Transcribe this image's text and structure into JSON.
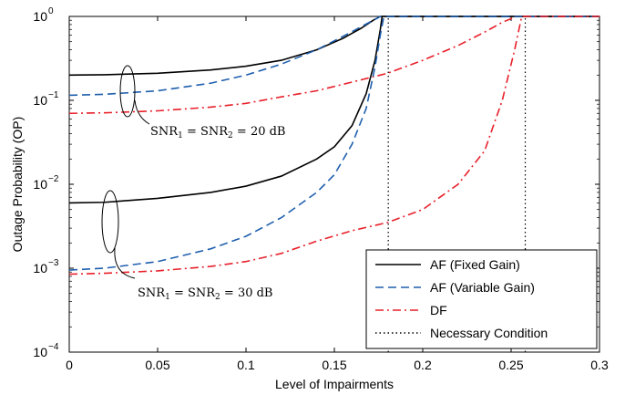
{
  "chart_data": {
    "type": "line",
    "xlabel": "Level of Impairments",
    "ylabel": "Outage Probability (OP)",
    "xlim": [
      0,
      0.3
    ],
    "ylim": [
      0.0001,
      1
    ],
    "yscale": "log",
    "grid": false,
    "legend_position": "bottom-right",
    "x_ticks": [
      0,
      0.05,
      0.1,
      0.15,
      0.2,
      0.25,
      0.3
    ],
    "x_tick_labels": [
      "0",
      "0.05",
      "0.1",
      "0.15",
      "0.2",
      "0.25",
      "0.3"
    ],
    "y_ticks": [
      0.0001,
      0.001,
      0.01,
      0.1,
      1
    ],
    "y_tick_labels": [
      {
        "base": "10",
        "exp": "−4"
      },
      {
        "base": "10",
        "exp": "−3"
      },
      {
        "base": "10",
        "exp": "−2"
      },
      {
        "base": "10",
        "exp": "−1"
      },
      {
        "base": "10",
        "exp": "0"
      }
    ],
    "series": [
      {
        "name": "AF (Fixed Gain)",
        "color": "#000000",
        "dash": "solid",
        "group": "SNR 20 dB",
        "points": [
          [
            0,
            0.2
          ],
          [
            0.02,
            0.202
          ],
          [
            0.05,
            0.21
          ],
          [
            0.08,
            0.23
          ],
          [
            0.1,
            0.255
          ],
          [
            0.12,
            0.3
          ],
          [
            0.14,
            0.4
          ],
          [
            0.155,
            0.55
          ],
          [
            0.165,
            0.72
          ],
          [
            0.172,
            0.9
          ],
          [
            0.176,
            1
          ],
          [
            0.3,
            1
          ]
        ]
      },
      {
        "name": "AF (Variable Gain)",
        "color": "#1f5fad",
        "dash": "dashed",
        "group": "SNR 20 dB",
        "points": [
          [
            0,
            0.115
          ],
          [
            0.02,
            0.118
          ],
          [
            0.05,
            0.13
          ],
          [
            0.08,
            0.16
          ],
          [
            0.1,
            0.2
          ],
          [
            0.12,
            0.27
          ],
          [
            0.14,
            0.4
          ],
          [
            0.155,
            0.58
          ],
          [
            0.165,
            0.75
          ],
          [
            0.172,
            0.9
          ],
          [
            0.176,
            1
          ],
          [
            0.3,
            1
          ]
        ]
      },
      {
        "name": "DF",
        "color": "#e8202a",
        "dash": "dashdot",
        "group": "SNR 20 dB",
        "points": [
          [
            0,
            0.07
          ],
          [
            0.02,
            0.071
          ],
          [
            0.05,
            0.075
          ],
          [
            0.08,
            0.083
          ],
          [
            0.1,
            0.092
          ],
          [
            0.12,
            0.11
          ],
          [
            0.14,
            0.13
          ],
          [
            0.16,
            0.165
          ],
          [
            0.18,
            0.21
          ],
          [
            0.2,
            0.3
          ],
          [
            0.22,
            0.45
          ],
          [
            0.235,
            0.65
          ],
          [
            0.245,
            0.85
          ],
          [
            0.253,
            1
          ],
          [
            0.3,
            1
          ]
        ]
      },
      {
        "name": "AF (Fixed Gain)",
        "color": "#000000",
        "dash": "solid",
        "group": "SNR 30 dB",
        "points": [
          [
            0,
            0.006
          ],
          [
            0.02,
            0.0061
          ],
          [
            0.05,
            0.0068
          ],
          [
            0.08,
            0.008
          ],
          [
            0.1,
            0.0095
          ],
          [
            0.12,
            0.0125
          ],
          [
            0.14,
            0.02
          ],
          [
            0.15,
            0.028
          ],
          [
            0.16,
            0.05
          ],
          [
            0.168,
            0.12
          ],
          [
            0.173,
            0.3
          ],
          [
            0.176,
            0.7
          ],
          [
            0.177,
            1
          ],
          [
            0.3,
            1
          ]
        ]
      },
      {
        "name": "AF (Variable Gain)",
        "color": "#1f5fad",
        "dash": "dashed",
        "group": "SNR 30 dB",
        "points": [
          [
            0,
            0.00095
          ],
          [
            0.02,
            0.001
          ],
          [
            0.05,
            0.0012
          ],
          [
            0.08,
            0.0017
          ],
          [
            0.1,
            0.0024
          ],
          [
            0.12,
            0.004
          ],
          [
            0.14,
            0.008
          ],
          [
            0.15,
            0.013
          ],
          [
            0.16,
            0.03
          ],
          [
            0.168,
            0.08
          ],
          [
            0.173,
            0.25
          ],
          [
            0.176,
            0.6
          ],
          [
            0.178,
            1
          ],
          [
            0.3,
            1
          ]
        ]
      },
      {
        "name": "DF",
        "color": "#e8202a",
        "dash": "dashdot",
        "group": "SNR 30 dB",
        "points": [
          [
            0,
            0.00085
          ],
          [
            0.02,
            0.00087
          ],
          [
            0.05,
            0.00093
          ],
          [
            0.08,
            0.00105
          ],
          [
            0.1,
            0.0012
          ],
          [
            0.12,
            0.0015
          ],
          [
            0.14,
            0.0021
          ],
          [
            0.16,
            0.0028
          ],
          [
            0.18,
            0.0035
          ],
          [
            0.2,
            0.005
          ],
          [
            0.22,
            0.01
          ],
          [
            0.235,
            0.025
          ],
          [
            0.245,
            0.1
          ],
          [
            0.252,
            0.4
          ],
          [
            0.256,
            1
          ],
          [
            0.3,
            1
          ]
        ]
      },
      {
        "name": "Necessary Condition",
        "color": "#000000",
        "dash": "dotted",
        "group": "limits",
        "points": [
          [
            0.1805,
            0.0001
          ],
          [
            0.1805,
            1
          ]
        ]
      },
      {
        "name": "Necessary Condition",
        "color": "#000000",
        "dash": "dotted",
        "group": "limits",
        "points": [
          [
            0.258,
            0.0001
          ],
          [
            0.258,
            1
          ]
        ]
      }
    ],
    "legend": [
      {
        "label": "AF (Fixed Gain)",
        "color": "#000000",
        "dash": "solid"
      },
      {
        "label": "AF (Variable Gain)",
        "color": "#1f5fad",
        "dash": "dashed"
      },
      {
        "label": "DF",
        "color": "#e8202a",
        "dash": "dashdot"
      },
      {
        "label": "Necessary Condition",
        "color": "#000000",
        "dash": "dotted"
      }
    ],
    "annotations": [
      {
        "label": "SNR",
        "sub1": "1",
        "eq": " = SNR",
        "sub2": "2",
        "rest": " = 20 dB"
      },
      {
        "label": "SNR",
        "sub1": "1",
        "eq": " = SNR",
        "sub2": "2",
        "rest": " = 30 dB"
      }
    ]
  }
}
